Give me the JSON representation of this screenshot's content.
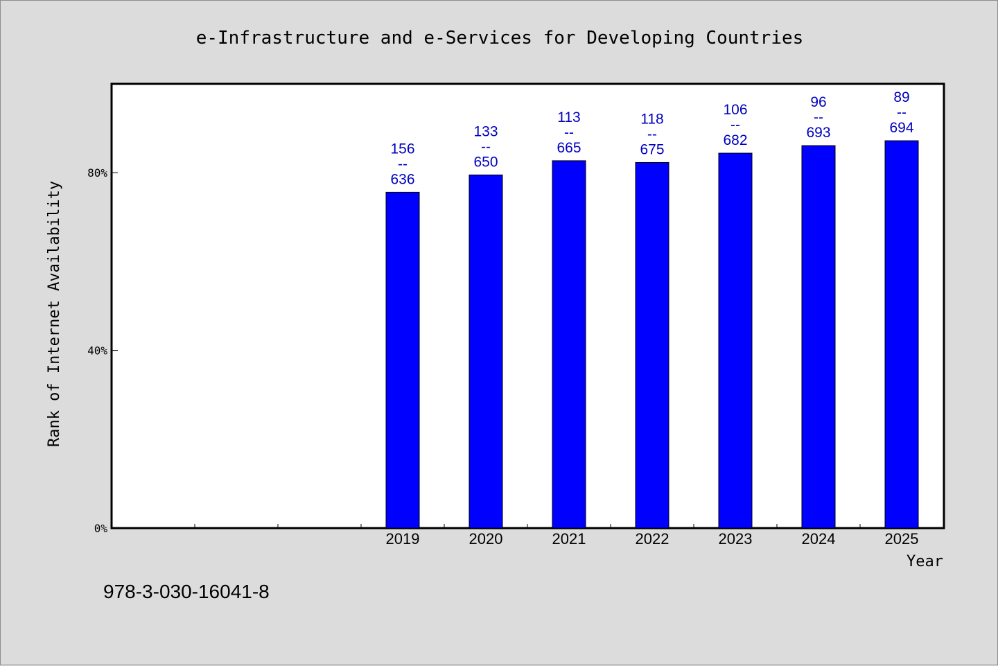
{
  "chart_data": {
    "type": "bar",
    "title": "e-Infrastructure and e-Services for Developing Countries",
    "xlabel": "Year",
    "ylabel": "Rank of Internet Availability",
    "categories": [
      "",
      "",
      "",
      "2019",
      "2020",
      "2021",
      "2022",
      "2023",
      "2024",
      "2025"
    ],
    "values": [
      null,
      null,
      null,
      75.6,
      79.5,
      82.7,
      82.3,
      84.4,
      86.1,
      87.2
    ],
    "bar_labels": [
      [
        "",
        "",
        ""
      ],
      [
        "",
        "",
        ""
      ],
      [
        "",
        "",
        ""
      ],
      [
        "156",
        "--",
        "636"
      ],
      [
        "133",
        "--",
        "650"
      ],
      [
        "113",
        "--",
        "665"
      ],
      [
        "118",
        "--",
        "675"
      ],
      [
        "106",
        "--",
        "682"
      ],
      [
        "96",
        "--",
        "693"
      ],
      [
        "89",
        "--",
        "694"
      ]
    ],
    "yticks": [
      0,
      40,
      80
    ],
    "ytick_labels": [
      "0%",
      "40%",
      "80%"
    ],
    "ylim": [
      0,
      100
    ],
    "grid": false,
    "colors": {
      "bar": "#0000ff",
      "label": "#0000c0",
      "background": "#dcdcdc",
      "plot": "#ffffff"
    }
  },
  "footer_text": "978-3-030-16041-8"
}
